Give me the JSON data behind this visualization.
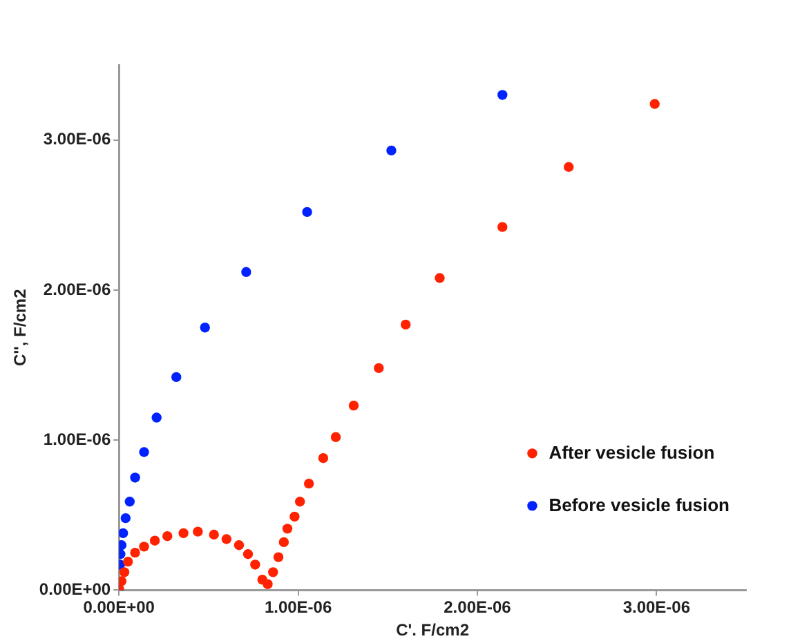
{
  "chart_data": {
    "type": "scatter",
    "xlabel": "C'. F/cm2",
    "ylabel": "C'', F/cm2",
    "xlim": [
      0,
      3.5e-06
    ],
    "ylim": [
      0,
      3.5e-06
    ],
    "xticks": [
      {
        "value": 0,
        "label": "0.00E+00"
      },
      {
        "value": 1e-06,
        "label": "1.00E-06"
      },
      {
        "value": 2e-06,
        "label": "2.00E-06"
      },
      {
        "value": 3e-06,
        "label": "3.00E-06"
      }
    ],
    "yticks": [
      {
        "value": 0,
        "label": "0.00E+00"
      },
      {
        "value": 1e-06,
        "label": "1.00E-06"
      },
      {
        "value": 2e-06,
        "label": "2.00E-06"
      },
      {
        "value": 3e-06,
        "label": "3.00E-06"
      }
    ],
    "grid": false,
    "legend": "bottom right",
    "marker": "circle",
    "series": [
      {
        "name": "After vesicle fusion",
        "color": "#ff2200",
        "x": [
          0,
          1.4e-08,
          3e-08,
          5e-08,
          9e-08,
          1.4e-07,
          2e-07,
          2.7e-07,
          3.6e-07,
          4.4e-07,
          5.3e-07,
          6e-07,
          6.7e-07,
          7.2e-07,
          7.6e-07,
          8e-07,
          8.3e-07,
          8.6e-07,
          8.9e-07,
          9.2e-07,
          9.4e-07,
          9.8e-07,
          1.01e-06,
          1.06e-06,
          1.14e-06,
          1.21e-06,
          1.31e-06,
          1.45e-06,
          1.6e-06,
          1.79e-06,
          2.14e-06,
          2.51e-06,
          2.99e-06
        ],
        "values": [
          1e-08,
          6e-08,
          1.2e-07,
          1.9e-07,
          2.5e-07,
          2.9e-07,
          3.3e-07,
          3.6e-07,
          3.8e-07,
          3.9e-07,
          3.7e-07,
          3.4e-07,
          3e-07,
          2.4e-07,
          1.7e-07,
          7e-08,
          4e-08,
          1.2e-07,
          2.2e-07,
          3.2e-07,
          4.1e-07,
          4.9e-07,
          5.9e-07,
          7.1e-07,
          8.8e-07,
          1.02e-06,
          1.23e-06,
          1.48e-06,
          1.77e-06,
          2.08e-06,
          2.42e-06,
          2.82e-06,
          3.24e-06
        ]
      },
      {
        "name": "Before vesicle fusion",
        "color": "#0022ff",
        "x": [
          0,
          6e-09,
          8e-09,
          1.4e-08,
          2.3e-08,
          3.7e-08,
          6e-08,
          9e-08,
          1.4e-07,
          2.1e-07,
          3.2e-07,
          4.8e-07,
          7.1e-07,
          1.05e-06,
          1.52e-06,
          2.14e-06
        ],
        "values": [
          0,
          1.7e-07,
          2.4e-07,
          3e-07,
          3.8e-07,
          4.8e-07,
          5.9e-07,
          7.5e-07,
          9.2e-07,
          1.15e-06,
          1.42e-06,
          1.75e-06,
          2.12e-06,
          2.52e-06,
          2.93e-06,
          3.3e-06
        ]
      }
    ]
  }
}
